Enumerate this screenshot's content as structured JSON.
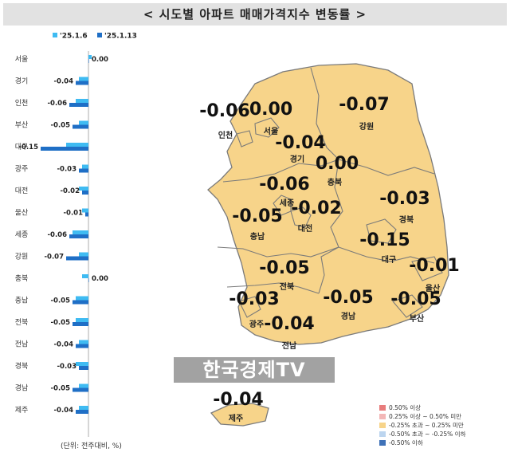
{
  "title": "< 시도별 아파트 매매가격지수 변동률 >",
  "unit_note": "(단위: 전주대비, %)",
  "watermark": "한국경제TV",
  "colors": {
    "series_prev": "#3fbbf2",
    "series_curr": "#1f6fc6",
    "map_fill": "#f7d48a",
    "map_stroke": "#7a7a7a",
    "header_bg": "#e2e2e2"
  },
  "chart_data": {
    "type": "bar",
    "orientation": "horizontal",
    "legend_position": "top-left",
    "categories": [
      "서울",
      "경기",
      "인천",
      "부산",
      "대구",
      "광주",
      "대전",
      "울산",
      "세종",
      "강원",
      "충북",
      "충남",
      "전북",
      "전남",
      "경북",
      "경남",
      "제주"
    ],
    "series": [
      {
        "name": "'25.1.6",
        "values": [
          0.01,
          -0.03,
          -0.04,
          -0.03,
          -0.07,
          -0.02,
          -0.03,
          -0.02,
          -0.05,
          -0.03,
          -0.02,
          -0.04,
          -0.04,
          -0.03,
          -0.04,
          -0.03,
          -0.03
        ]
      },
      {
        "name": "'25.1.13",
        "values": [
          0.0,
          -0.04,
          -0.06,
          -0.05,
          -0.15,
          -0.03,
          -0.02,
          -0.01,
          -0.06,
          -0.07,
          0.0,
          -0.05,
          -0.05,
          -0.04,
          -0.03,
          -0.05,
          -0.04
        ]
      }
    ],
    "data_labels": [
      "0.00",
      "-0.04",
      "-0.06",
      "-0.05",
      "-0.15",
      "-0.03",
      "-0.02",
      "-0.01",
      "-0.06",
      "-0.07",
      "0.00",
      "-0.05",
      "-0.05",
      "-0.04",
      "-0.03",
      "-0.05",
      "-0.04"
    ]
  },
  "map_labels": [
    {
      "name": "인천",
      "value": "-0.06"
    },
    {
      "name": "서울",
      "value": "0.00"
    },
    {
      "name": "강원",
      "value": "-0.07"
    },
    {
      "name": "경기",
      "value": "-0.04"
    },
    {
      "name": "충북",
      "value": "0.00"
    },
    {
      "name": "세종",
      "value": "-0.06"
    },
    {
      "name": "경북",
      "value": "-0.03"
    },
    {
      "name": "대전",
      "value": "-0.02"
    },
    {
      "name": "충남",
      "value": "-0.05"
    },
    {
      "name": "대구",
      "value": "-0.15"
    },
    {
      "name": "울산",
      "value": "-0.01"
    },
    {
      "name": "전북",
      "value": "-0.05"
    },
    {
      "name": "광주",
      "value": "-0.03"
    },
    {
      "name": "경남",
      "value": "-0.05"
    },
    {
      "name": "부산",
      "value": "-0.05"
    },
    {
      "name": "전남",
      "value": "-0.04"
    },
    {
      "name": "제주",
      "value": "-0.04"
    }
  ],
  "legend": [
    {
      "label": "0.50% 이상",
      "color": "#e87c7c"
    },
    {
      "label": "0.25% 이상 ~ 0.50% 미만",
      "color": "#f3b7b7"
    },
    {
      "label": "-0.25% 초과 ~ 0.25% 미만",
      "color": "#f7d48a"
    },
    {
      "label": "-0.50% 초과 ~ -0.25% 이하",
      "color": "#bcd5ef"
    },
    {
      "label": "-0.50% 이하",
      "color": "#3f72b8"
    }
  ]
}
